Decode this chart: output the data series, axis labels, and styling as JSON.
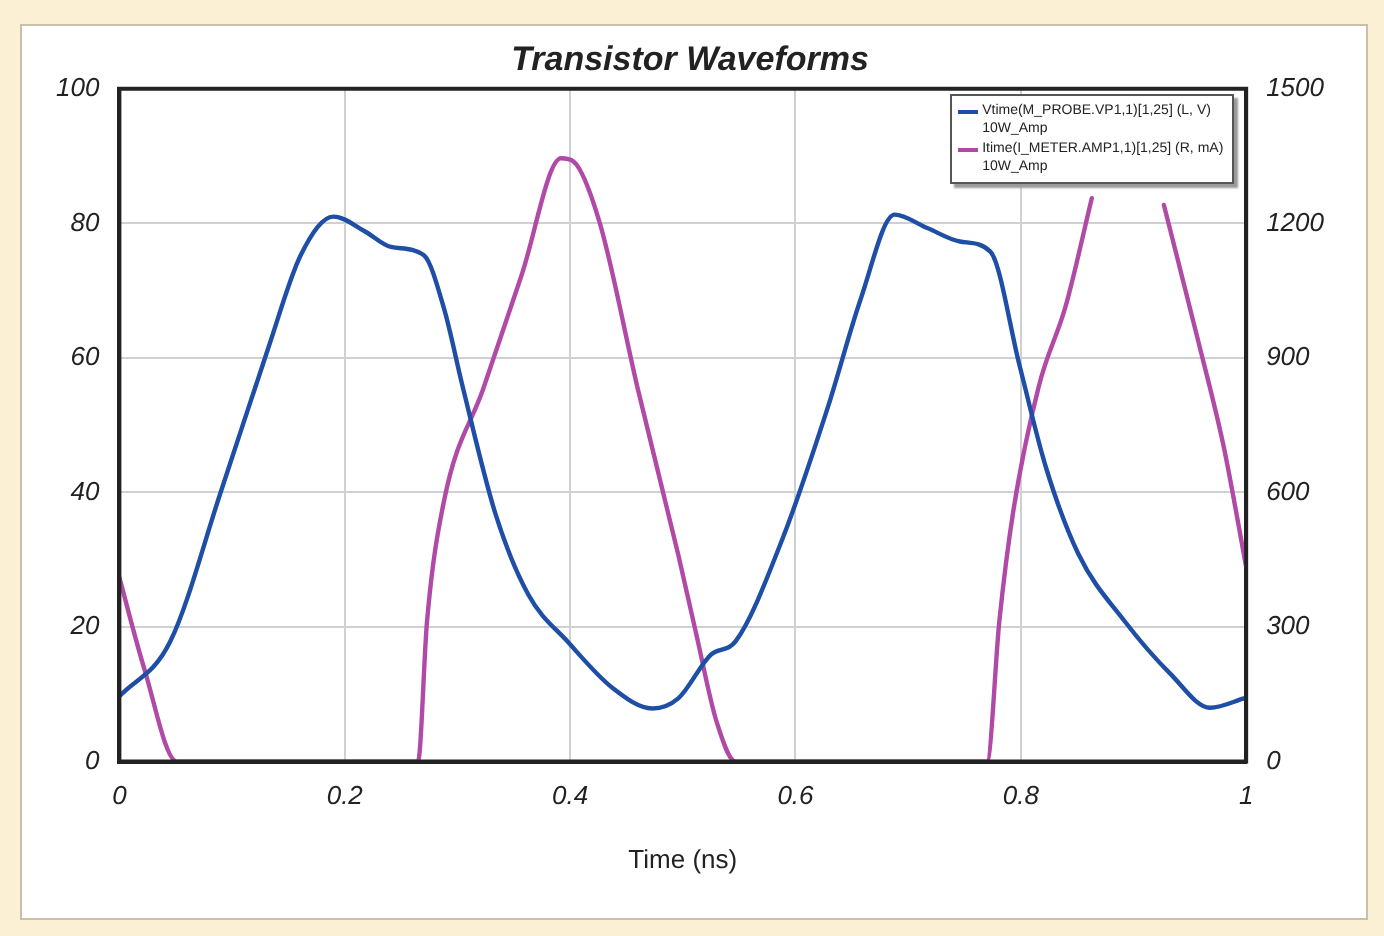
{
  "chart_data": {
    "type": "line",
    "title": "Transistor Waveforms",
    "xlabel": "Time (ns)",
    "xlim": [
      0,
      1
    ],
    "xticks": [
      0,
      0.2,
      0.4,
      0.6,
      0.8,
      1
    ],
    "ylim": [
      0,
      100
    ],
    "yticks": [
      0,
      20,
      40,
      60,
      80,
      100
    ],
    "y2lim": [
      0,
      1500
    ],
    "y2ticks": [
      0,
      300,
      600,
      900,
      1200,
      1500
    ],
    "grid": true,
    "legend": "top right",
    "marker": "none",
    "line_style": "solid",
    "series": [
      {
        "name": "Vtime(M_PROBE.VP1,1)[1,25] (L, V)\n10W_Amp",
        "color": "#1f4ea6",
        "x": [
          0,
          0.045,
          0.091,
          0.132,
          0.161,
          0.19,
          0.218,
          0.241,
          0.27,
          0.288,
          0.305,
          0.334,
          0.363,
          0.398,
          0.438,
          0.473,
          0.496,
          0.525,
          0.547,
          0.588,
          0.629,
          0.658,
          0.688,
          0.717,
          0.746,
          0.773,
          0.799,
          0.822,
          0.851,
          0.892,
          0.933,
          0.968,
          1
        ],
        "values": [
          9.7,
          17.8,
          40.6,
          61.4,
          75.3,
          81,
          78.8,
          76.5,
          75.3,
          67.4,
          55.5,
          36.7,
          24.8,
          17.8,
          10.9,
          7.9,
          9.4,
          15.9,
          17.9,
          32.9,
          52.8,
          68.8,
          81.3,
          79.3,
          77.3,
          75.8,
          58.8,
          43.9,
          30.9,
          20.9,
          13,
          8,
          9.5
        ]
      },
      {
        "name": "Itime(I_METER.AMP1,1)[1,25] (R, mA)\n10W_Amp",
        "color": "#b04aa6",
        "axis": "y2",
        "x": [
          0,
          0.022,
          0.051,
          0.265,
          0.273,
          0.288,
          0.323,
          0.357,
          0.392,
          0.403,
          0.426,
          0.46,
          0.496,
          0.512,
          0.53,
          0.547,
          0.77,
          0.781,
          0.793,
          0.816,
          0.84,
          0.863,
          0.88,
          0.9,
          0.92,
          0.927,
          0.957,
          0.98,
          1
        ],
        "values": [
          410,
          208,
          0,
          0,
          312,
          580,
          832,
          1085,
          1345,
          1338,
          1204,
          832,
          461,
          284,
          89,
          0,
          0,
          314,
          553,
          837,
          1017,
          1256,
          null,
          null,
          null,
          1241,
          942,
          703,
          434
        ]
      }
    ]
  }
}
